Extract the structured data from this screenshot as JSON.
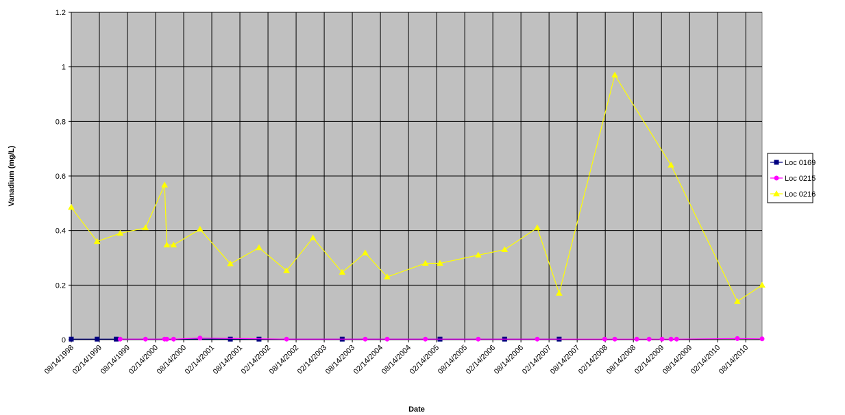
{
  "chart_data": {
    "type": "line",
    "x_label": "Date",
    "y_label": "Vanadium (mg/L)",
    "xlim": [
      1998.62,
      2010.91
    ],
    "ylim": [
      0,
      1.2
    ],
    "yticks": [
      0,
      0.2,
      0.4,
      0.6,
      0.8,
      1,
      1.2
    ],
    "xticks": [
      {
        "value": 1998.62,
        "label": "08/14/1998"
      },
      {
        "value": 1999.12,
        "label": "02/14/1999"
      },
      {
        "value": 1999.62,
        "label": "08/14/1999"
      },
      {
        "value": 2000.12,
        "label": "02/14/2000"
      },
      {
        "value": 2000.62,
        "label": "08/14/2000"
      },
      {
        "value": 2001.12,
        "label": "02/14/2001"
      },
      {
        "value": 2001.62,
        "label": "08/14/2001"
      },
      {
        "value": 2002.12,
        "label": "02/14/2002"
      },
      {
        "value": 2002.62,
        "label": "08/14/2002"
      },
      {
        "value": 2003.12,
        "label": "02/14/2003"
      },
      {
        "value": 2003.62,
        "label": "08/14/2003"
      },
      {
        "value": 2004.12,
        "label": "02/14/2004"
      },
      {
        "value": 2004.62,
        "label": "08/14/2004"
      },
      {
        "value": 2005.12,
        "label": "02/14/2005"
      },
      {
        "value": 2005.62,
        "label": "08/14/2005"
      },
      {
        "value": 2006.12,
        "label": "02/14/2006"
      },
      {
        "value": 2006.62,
        "label": "08/14/2006"
      },
      {
        "value": 2007.12,
        "label": "02/14/2007"
      },
      {
        "value": 2007.62,
        "label": "08/14/2007"
      },
      {
        "value": 2008.12,
        "label": "02/14/2008"
      },
      {
        "value": 2008.62,
        "label": "08/14/2008"
      },
      {
        "value": 2009.12,
        "label": "02/14/2009"
      },
      {
        "value": 2009.62,
        "label": "08/14/2009"
      },
      {
        "value": 2010.12,
        "label": "02/14/2010"
      },
      {
        "value": 2010.62,
        "label": "08/14/2010"
      }
    ],
    "grid": true,
    "legend": "right",
    "background": "#c0c0c0",
    "series": [
      {
        "name": "Loc 0169",
        "color": "#000080",
        "marker": "square",
        "x": [
          1998.62,
          1999.08,
          1999.42,
          2001.45,
          2001.96,
          2003.44,
          2005.18,
          2006.33,
          2007.3
        ],
        "values": [
          0.002,
          0.002,
          0.002,
          0.002,
          0.002,
          0.002,
          0.002,
          0.002,
          0.002
        ]
      },
      {
        "name": "Loc 0215",
        "color": "#ff00ff",
        "marker": "circle",
        "x": [
          1999.49,
          1999.94,
          2000.28,
          2000.32,
          2000.44,
          2000.91,
          2002.45,
          2003.85,
          2004.24,
          2004.92,
          2005.86,
          2006.91,
          2008.11,
          2008.29,
          2008.68,
          2008.9,
          2009.13,
          2009.29,
          2009.39,
          2010.47,
          2010.91
        ],
        "values": [
          0.002,
          0.002,
          0.002,
          0.002,
          0.002,
          0.006,
          0.002,
          0.002,
          0.002,
          0.002,
          0.002,
          0.002,
          0.002,
          0.002,
          0.002,
          0.002,
          0.002,
          0.002,
          0.002,
          0.004,
          0.003
        ]
      },
      {
        "name": "Loc 0216",
        "color": "#ffff00",
        "marker": "triangle",
        "x": [
          1998.62,
          1999.08,
          1999.49,
          1999.94,
          2000.28,
          2000.32,
          2000.44,
          2000.91,
          2001.45,
          2001.96,
          2002.45,
          2002.92,
          2003.44,
          2003.85,
          2004.24,
          2004.92,
          2005.18,
          2005.86,
          2006.33,
          2006.91,
          2007.3,
          2008.29,
          2009.29,
          2010.47,
          2010.91
        ],
        "values": [
          0.485,
          0.36,
          0.39,
          0.41,
          0.567,
          0.347,
          0.347,
          0.405,
          0.278,
          0.337,
          0.253,
          0.373,
          0.247,
          0.318,
          0.23,
          0.28,
          0.28,
          0.31,
          0.33,
          0.41,
          0.17,
          0.97,
          0.64,
          0.14,
          0.2
        ]
      }
    ]
  }
}
